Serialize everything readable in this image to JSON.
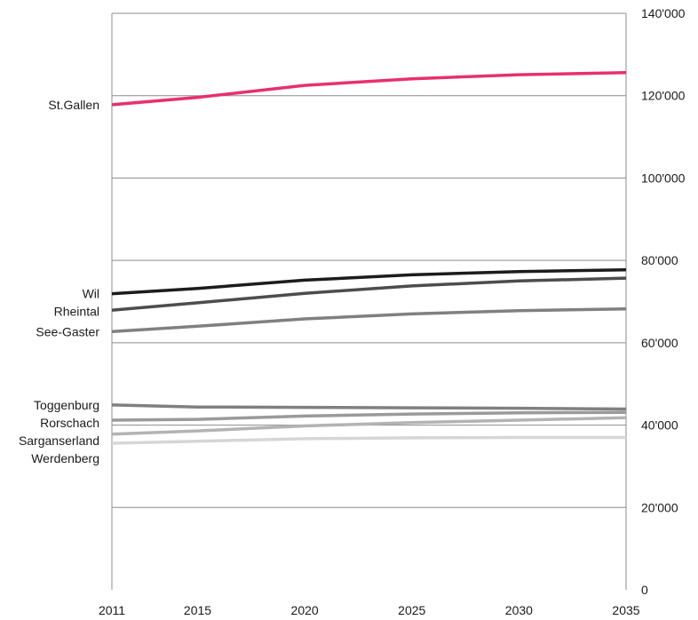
{
  "chart_data": {
    "type": "line",
    "title": "",
    "xlabel": "",
    "ylabel": "",
    "x": [
      2011,
      2015,
      2020,
      2025,
      2030,
      2035
    ],
    "x_ticks": [
      "2011",
      "2015",
      "2020",
      "2025",
      "2030",
      "2035"
    ],
    "ylim": [
      0,
      140000
    ],
    "y_ticks": [
      {
        "value": 0,
        "label": "0"
      },
      {
        "value": 20000,
        "label": "20'000"
      },
      {
        "value": 40000,
        "label": "40'000"
      },
      {
        "value": 60000,
        "label": "60'000"
      },
      {
        "value": 80000,
        "label": "80'000"
      },
      {
        "value": 100000,
        "label": "100'000"
      },
      {
        "value": 120000,
        "label": "120'000"
      },
      {
        "value": 140000,
        "label": "140'000"
      }
    ],
    "y_axis_side": "right",
    "grid": "horizontal",
    "series": [
      {
        "name": "St.Gallen",
        "color": "#e8306e",
        "values": [
          117800,
          119600,
          122500,
          124100,
          125100,
          125600
        ]
      },
      {
        "name": "Wil",
        "color": "#1c1c1c",
        "values": [
          71900,
          73200,
          75200,
          76500,
          77300,
          77700
        ]
      },
      {
        "name": "Rheintal",
        "color": "#4d4d4d",
        "values": [
          67900,
          69700,
          72000,
          73800,
          75000,
          75700
        ]
      },
      {
        "name": "See-Gaster",
        "color": "#808080",
        "values": [
          62700,
          64000,
          65800,
          67000,
          67800,
          68200
        ]
      },
      {
        "name": "Toggenburg",
        "color": "#808080",
        "values": [
          44900,
          44400,
          44300,
          44200,
          44100,
          43900
        ]
      },
      {
        "name": "Rorschach",
        "color": "#9a9a9a",
        "values": [
          41200,
          41400,
          42200,
          42700,
          43000,
          43100
        ]
      },
      {
        "name": "Sarganserland",
        "color": "#b3b3b3",
        "values": [
          37800,
          38600,
          39800,
          40600,
          41200,
          41800
        ]
      },
      {
        "name": "Werdenberg",
        "color": "#d6d6d6",
        "values": [
          35600,
          36100,
          36700,
          36900,
          37000,
          37000
        ]
      }
    ]
  }
}
